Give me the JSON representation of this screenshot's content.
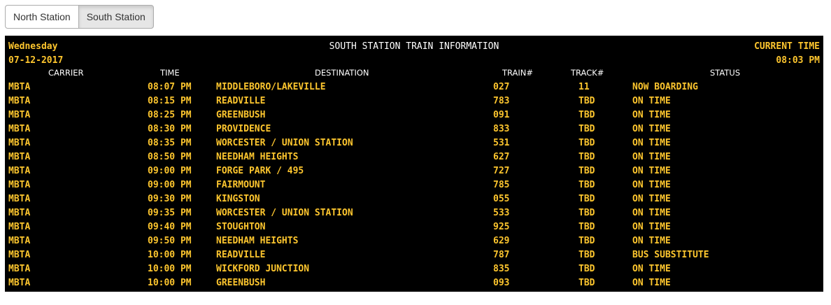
{
  "tabs": [
    {
      "label": "North Station",
      "active": false
    },
    {
      "label": "South Station",
      "active": true
    }
  ],
  "board": {
    "day": "Wednesday",
    "date": "07-12-2017",
    "title": "SOUTH STATION TRAIN INFORMATION",
    "current_time_label": "CURRENT TIME",
    "current_time": "08:03 PM",
    "headers": {
      "carrier": "CARRIER",
      "time": "TIME",
      "destination": "DESTINATION",
      "train": "TRAIN#",
      "track": "TRACK#",
      "status": "STATUS"
    },
    "colors": {
      "text": "#fec62e",
      "background": "#000000",
      "heading": "#ffffff"
    },
    "rows": [
      {
        "carrier": "MBTA",
        "time": "08:07 PM",
        "destination": "MIDDLEBORO/LAKEVILLE",
        "train": "027",
        "track": "11",
        "status": "NOW BOARDING"
      },
      {
        "carrier": "MBTA",
        "time": "08:15 PM",
        "destination": "READVILLE",
        "train": "783",
        "track": "TBD",
        "status": "ON TIME"
      },
      {
        "carrier": "MBTA",
        "time": "08:25 PM",
        "destination": "GREENBUSH",
        "train": "091",
        "track": "TBD",
        "status": "ON TIME"
      },
      {
        "carrier": "MBTA",
        "time": "08:30 PM",
        "destination": "PROVIDENCE",
        "train": "833",
        "track": "TBD",
        "status": "ON TIME"
      },
      {
        "carrier": "MBTA",
        "time": "08:35 PM",
        "destination": "WORCESTER / UNION STATION",
        "train": "531",
        "track": "TBD",
        "status": "ON TIME"
      },
      {
        "carrier": "MBTA",
        "time": "08:50 PM",
        "destination": "NEEDHAM HEIGHTS",
        "train": "627",
        "track": "TBD",
        "status": "ON TIME"
      },
      {
        "carrier": "MBTA",
        "time": "09:00 PM",
        "destination": "FORGE PARK / 495",
        "train": "727",
        "track": "TBD",
        "status": "ON TIME"
      },
      {
        "carrier": "MBTA",
        "time": "09:00 PM",
        "destination": "FAIRMOUNT",
        "train": "785",
        "track": "TBD",
        "status": "ON TIME"
      },
      {
        "carrier": "MBTA",
        "time": "09:30 PM",
        "destination": "KINGSTON",
        "train": "055",
        "track": "TBD",
        "status": "ON TIME"
      },
      {
        "carrier": "MBTA",
        "time": "09:35 PM",
        "destination": "WORCESTER / UNION STATION",
        "train": "533",
        "track": "TBD",
        "status": "ON TIME"
      },
      {
        "carrier": "MBTA",
        "time": "09:40 PM",
        "destination": "STOUGHTON",
        "train": "925",
        "track": "TBD",
        "status": "ON TIME"
      },
      {
        "carrier": "MBTA",
        "time": "09:50 PM",
        "destination": "NEEDHAM HEIGHTS",
        "train": "629",
        "track": "TBD",
        "status": "ON TIME"
      },
      {
        "carrier": "MBTA",
        "time": "10:00 PM",
        "destination": "READVILLE",
        "train": "787",
        "track": "TBD",
        "status": "BUS SUBSTITUTE"
      },
      {
        "carrier": "MBTA",
        "time": "10:00 PM",
        "destination": "WICKFORD JUNCTION",
        "train": "835",
        "track": "TBD",
        "status": "ON TIME"
      },
      {
        "carrier": "MBTA",
        "time": "10:00 PM",
        "destination": "GREENBUSH",
        "train": "093",
        "track": "TBD",
        "status": "ON TIME"
      }
    ]
  }
}
